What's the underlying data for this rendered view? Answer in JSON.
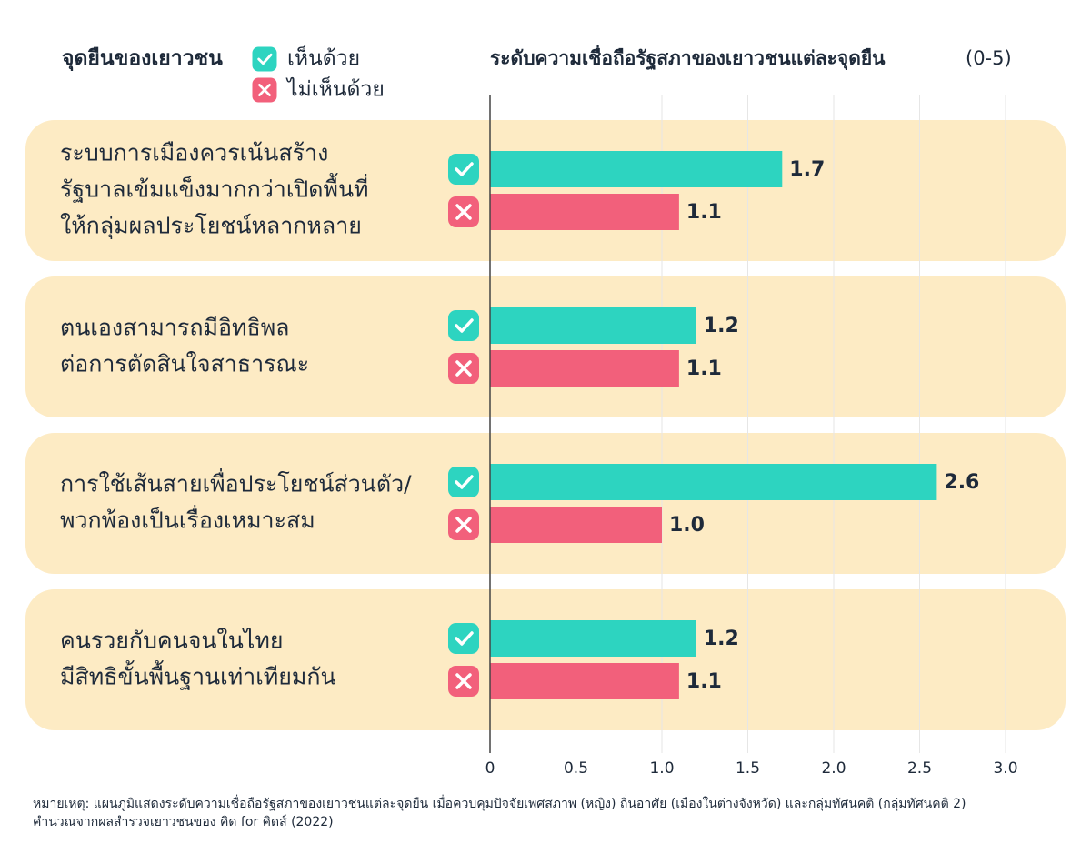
{
  "chart_data": {
    "type": "bar",
    "orientation": "horizontal",
    "title": "ระดับความเชื่อถือรัฐสภาของเยาวชนแต่ละจุดยืน",
    "subtitle": "(0-5)",
    "category_title": "จุดยืนของเยาวชน",
    "categories": [
      [
        "ระบบการเมืองควรเน้นสร้าง",
        "รัฐบาลเข้มแข็งมากกว่าเปิดพื้นที่",
        "ให้กลุ่มผลประโยชน์หลากหลาย"
      ],
      [
        "ตนเองสามารถมีอิทธิพล",
        "ต่อการตัดสินใจสาธารณะ"
      ],
      [
        "การใช้เส้นสายเพื่อประโยชน์ส่วนตัว/",
        "พวกพ้องเป็นเรื่องเหมาะสม"
      ],
      [
        "คนรวยกับคนจนในไทย",
        "มีสิทธิขั้นพื้นฐานเท่าเทียมกัน"
      ]
    ],
    "series": [
      {
        "name": "เห็นด้วย",
        "color": "#2dd4c0",
        "values": [
          1.7,
          1.2,
          2.6,
          1.2
        ],
        "value_labels": [
          "1.7",
          "1.2",
          "2.6",
          "1.2"
        ]
      },
      {
        "name": "ไม่เห็นด้วย",
        "color": "#f2607b",
        "values": [
          1.1,
          1.1,
          1.0,
          1.1
        ],
        "value_labels": [
          "1.1",
          "1.1",
          "1.0",
          "1.1"
        ]
      }
    ],
    "xlim": [
      0,
      3
    ],
    "xticks": [
      0,
      0.5,
      {
        "value": 1,
        "label": "1.0"
      },
      1.5,
      {
        "value": 2,
        "label": "2.0"
      },
      2.5,
      {
        "value": 3,
        "label": "3.0"
      }
    ],
    "grid": true,
    "footnote": [
      "หมายเหตุ: แผนภูมิแสดงระดับความเชื่อถือรัฐสภาของเยาวชนแต่ละจุดยืน เมื่อควบคุมปัจจัยเพศสภาพ (หญิง) ถิ่นอาศัย (เมืองในต่างจังหวัด) และกลุ่มทัศนคติ (กลุ่มทัศนคติ 2)",
      "คำนวณจากผลสำรวจเยาวชนของ คิด for คิดส์ (2022)"
    ]
  }
}
